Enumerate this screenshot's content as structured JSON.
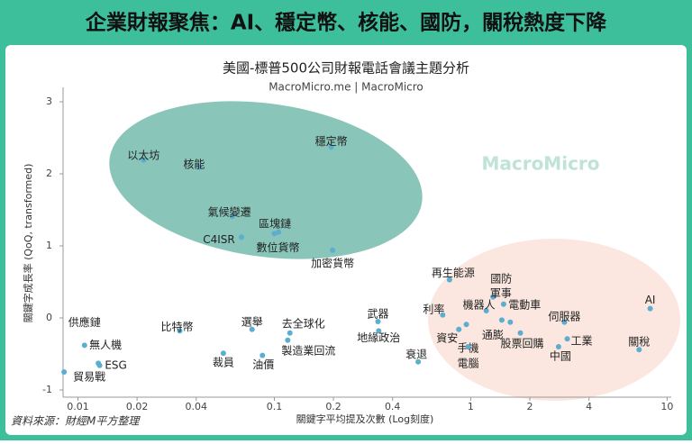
{
  "header": {
    "title": "企業財報聚焦：AI、穩定幣、核能、國防，關稅熱度下降"
  },
  "chart_data": {
    "type": "scatter",
    "title": "美國-標普500公司財報電話會議主題分析",
    "subtitle": "MacroMicro.me | MacroMicro",
    "x_label": "關鍵字平均提及次數 (Log刻度)",
    "y_label": "關鍵字成長率 (QoQ, transformed)",
    "log_x": true,
    "color": "#5aaed0",
    "xlim": [
      0.0084,
      10.5
    ],
    "ylim": [
      -1.1,
      3.2
    ],
    "xticks": [
      0.01,
      0.02,
      0.04,
      0.1,
      0.2,
      0.4,
      1,
      2,
      4,
      10
    ],
    "yticks": [
      -1,
      0,
      1,
      2,
      3
    ],
    "labels": [
      "以太坊",
      "核能",
      "穩定幣",
      "氣候變遷",
      "區塊鏈",
      "C4ISR",
      "數位貨幣",
      "加密貨幣",
      "再生能源",
      "國防",
      "軍事",
      "機器人",
      "電動車",
      "利率",
      "資安",
      "手機",
      "電腦",
      "通膨",
      "股票回購",
      "伺服器",
      "工業",
      "中國",
      "AI",
      "關稅",
      "供應鏈",
      "無人機",
      "ESG",
      "貿易戰",
      "比特幣",
      "選舉",
      "去全球化",
      "製造業回流",
      "裁員",
      "油價",
      "武器",
      "地緣政治",
      "衰退"
    ],
    "x": [
      0.0216,
      0.0416,
      0.195,
      0.061,
      0.105,
      0.068,
      0.1,
      0.198,
      0.78,
      1.3,
      1.47,
      1.2,
      1.59,
      0.72,
      0.87,
      0.95,
      0.97,
      1.44,
      1.79,
      3.0,
      3.1,
      2.8,
      8.2,
      7.2,
      0.0108,
      0.0127,
      0.0129,
      0.0085,
      0.033,
      0.077,
      0.12,
      0.117,
      0.055,
      0.087,
      0.337,
      0.34,
      0.54
    ],
    "values": [
      2.19,
      2.09,
      2.37,
      1.41,
      1.19,
      1.12,
      1.17,
      0.94,
      0.53,
      0.29,
      0.19,
      0.1,
      -0.06,
      0.04,
      -0.16,
      -0.09,
      -0.4,
      -0.03,
      -0.21,
      -0.06,
      -0.29,
      -0.4,
      0.13,
      -0.44,
      -0.38,
      -0.63,
      -0.66,
      -0.75,
      -0.18,
      -0.16,
      -0.21,
      -0.31,
      -0.49,
      -0.52,
      -0.05,
      -0.18,
      -0.61
    ]
  },
  "watermark": "MacroMicro",
  "source": "資料來源：財經M平方整理"
}
